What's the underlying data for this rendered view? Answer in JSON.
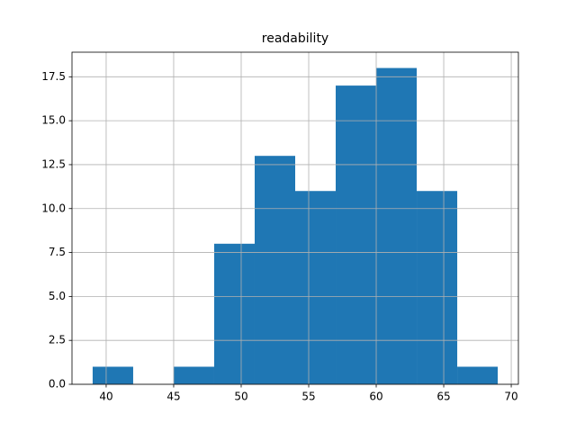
{
  "chart_data": {
    "type": "histogram",
    "title": "readability",
    "bins": [
      39,
      42,
      45,
      48,
      51,
      54,
      57,
      60,
      63,
      66,
      69
    ],
    "counts": [
      1,
      0,
      1,
      8,
      13,
      11,
      17,
      18,
      11,
      1
    ],
    "color": "#1f77b4",
    "xlim": [
      37.47,
      70.53
    ],
    "xticks": [
      40,
      45,
      50,
      55,
      60,
      65,
      70
    ],
    "ylim": [
      0,
      18.9
    ],
    "yticks": [
      {
        "value": 0,
        "label": "0.0"
      },
      2.5,
      {
        "value": 5,
        "label": "5.0"
      },
      7.5,
      {
        "value": 10,
        "label": "10.0"
      },
      12.5,
      {
        "value": 15,
        "label": "15.0"
      },
      17.5
    ],
    "grid": true
  }
}
